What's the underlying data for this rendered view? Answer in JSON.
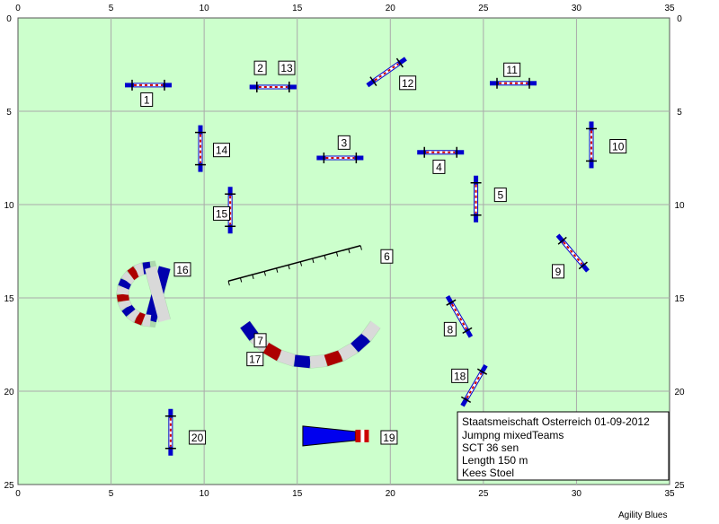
{
  "course": {
    "grid_major_step_m": 5,
    "field_width_m": 35,
    "field_height_m": 25,
    "field_color": "#ccffcc",
    "grid_color": "#aaaaaa",
    "x_ticks": [
      "0",
      "5",
      "10",
      "15",
      "20",
      "25",
      "30",
      "35"
    ],
    "y_ticks": [
      "0",
      "5",
      "10",
      "15",
      "20",
      "25"
    ]
  },
  "obstacles": [
    {
      "id": "1",
      "type": "jump",
      "x": 7.0,
      "y": 3.6,
      "angle": 0,
      "label_x": 6.6,
      "label_y": 4.4
    },
    {
      "id": "2",
      "type": "jump",
      "x": 13.7,
      "y": 3.7,
      "angle": 0,
      "label_x": 12.7,
      "label_y": 2.7
    },
    {
      "id": "13",
      "type": "jump",
      "x": 13.7,
      "y": 3.7,
      "angle": 0,
      "label_x": 14.0,
      "label_y": 2.7
    },
    {
      "id": "3",
      "type": "jump",
      "x": 17.3,
      "y": 7.5,
      "angle": 0,
      "label_x": 17.2,
      "label_y": 6.7
    },
    {
      "id": "4",
      "type": "jump",
      "x": 22.7,
      "y": 7.2,
      "angle": 0,
      "label_x": 22.3,
      "label_y": 8.0
    },
    {
      "id": "5",
      "type": "jump",
      "x": 24.6,
      "y": 9.7,
      "angle": 90,
      "label_x": 25.6,
      "label_y": 9.5
    },
    {
      "id": "6",
      "type": "weave",
      "x1": 11.3,
      "y1": 14.1,
      "x2": 18.4,
      "y2": 12.2,
      "label_x": 19.5,
      "label_y": 12.8
    },
    {
      "id": "7",
      "type": "label",
      "label_x": 12.7,
      "label_y": 17.3
    },
    {
      "id": "17",
      "type": "label",
      "label_x": 12.3,
      "label_y": 18.3
    },
    {
      "id": "tunnel-7-17",
      "type": "tunnel-curve",
      "cx": 15.7,
      "cy": 14.4,
      "r": 4.5,
      "start_deg": -30,
      "end_deg": -150
    },
    {
      "id": "8",
      "type": "jump",
      "x": 23.7,
      "y": 16.0,
      "angle": 60,
      "label_x": 22.9,
      "label_y": 16.7
    },
    {
      "id": "9",
      "type": "jump",
      "x": 29.8,
      "y": 12.6,
      "angle": 50,
      "label_x": 28.7,
      "label_y": 13.6
    },
    {
      "id": "10",
      "type": "jump",
      "x": 30.8,
      "y": 6.8,
      "angle": 90,
      "label_x": 31.8,
      "label_y": 6.9
    },
    {
      "id": "11",
      "type": "jump",
      "x": 26.6,
      "y": 3.5,
      "angle": 0,
      "label_x": 26.1,
      "label_y": 2.8
    },
    {
      "id": "12",
      "type": "jump",
      "x": 19.8,
      "y": 2.9,
      "angle": -35,
      "label_x": 20.5,
      "label_y": 3.5
    },
    {
      "id": "14",
      "type": "jump",
      "x": 9.8,
      "y": 7.0,
      "angle": 90,
      "label_x": 10.5,
      "label_y": 7.1
    },
    {
      "id": "15",
      "type": "jump",
      "x": 11.4,
      "y": 10.3,
      "angle": 90,
      "label_x": 10.5,
      "label_y": 10.5
    },
    {
      "id": "16",
      "type": "tunnel-c",
      "cx": 7.6,
      "cy": 14.8,
      "r": 1.5,
      "label_x": 8.4,
      "label_y": 13.5
    },
    {
      "id": "18",
      "type": "jump",
      "x": 24.5,
      "y": 19.7,
      "angle": -60,
      "label_x": 23.3,
      "label_y": 19.2
    },
    {
      "id": "19",
      "type": "chute",
      "x1": 15.3,
      "x2": 18.8,
      "y": 22.4,
      "label_x": 19.5,
      "label_y": 22.5
    },
    {
      "id": "20",
      "type": "jump",
      "x": 8.2,
      "y": 22.2,
      "angle": 90,
      "label_x": 9.2,
      "label_y": 22.5
    }
  ],
  "info": {
    "line1": "Staatsmeischaft Osterreich 01-09-2012",
    "line2": "Jumpng  mixedTeams",
    "line3": "SCT 36 sen",
    "line4": "Length 150 m",
    "line5": "Kees Stoel"
  },
  "credit": "Agility Blues"
}
